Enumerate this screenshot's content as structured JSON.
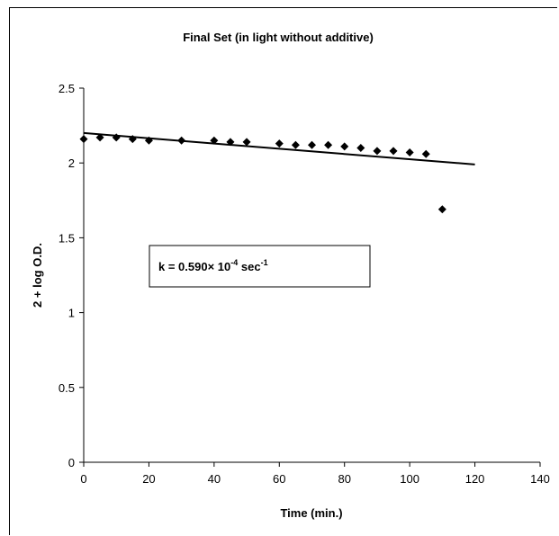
{
  "chart_data": {
    "type": "scatter",
    "title": "Final Set (in light without additive)",
    "xlabel": "Time (min.)",
    "ylabel": "2 + log O.D.",
    "xlim": [
      0,
      140
    ],
    "ylim": [
      0,
      2.5
    ],
    "xticks": [
      0,
      20,
      40,
      60,
      80,
      100,
      120,
      140
    ],
    "yticks": [
      0,
      0.5,
      1,
      1.5,
      2,
      2.5
    ],
    "xtick_labels": [
      "0",
      "20",
      "40",
      "60",
      "80",
      "100",
      "120",
      "140"
    ],
    "ytick_labels": [
      "0",
      "0.5",
      "1",
      "1.5",
      "2",
      "2.5"
    ],
    "grid": false,
    "series": [
      {
        "marker": "diamond",
        "color": "#000000",
        "points": [
          {
            "x": 0,
            "y": 2.16
          },
          {
            "x": 5,
            "y": 2.17
          },
          {
            "x": 10,
            "y": 2.17
          },
          {
            "x": 15,
            "y": 2.16
          },
          {
            "x": 20,
            "y": 2.15
          },
          {
            "x": 30,
            "y": 2.15
          },
          {
            "x": 40,
            "y": 2.15
          },
          {
            "x": 45,
            "y": 2.14
          },
          {
            "x": 50,
            "y": 2.14
          },
          {
            "x": 60,
            "y": 2.13
          },
          {
            "x": 65,
            "y": 2.12
          },
          {
            "x": 70,
            "y": 2.12
          },
          {
            "x": 75,
            "y": 2.12
          },
          {
            "x": 80,
            "y": 2.11
          },
          {
            "x": 85,
            "y": 2.1
          },
          {
            "x": 90,
            "y": 2.08
          },
          {
            "x": 95,
            "y": 2.08
          },
          {
            "x": 100,
            "y": 2.07
          },
          {
            "x": 105,
            "y": 2.06
          },
          {
            "x": 110,
            "y": 1.69
          }
        ]
      }
    ],
    "trendline": {
      "type": "linear",
      "color": "#000000",
      "from": {
        "x": 0,
        "y": 2.2
      },
      "to": {
        "x": 120,
        "y": 1.99
      }
    },
    "annotation": {
      "prefix": "k = 0.590× 10",
      "exp1": "-4",
      "middle": " sec",
      "exp2": "-1"
    }
  }
}
